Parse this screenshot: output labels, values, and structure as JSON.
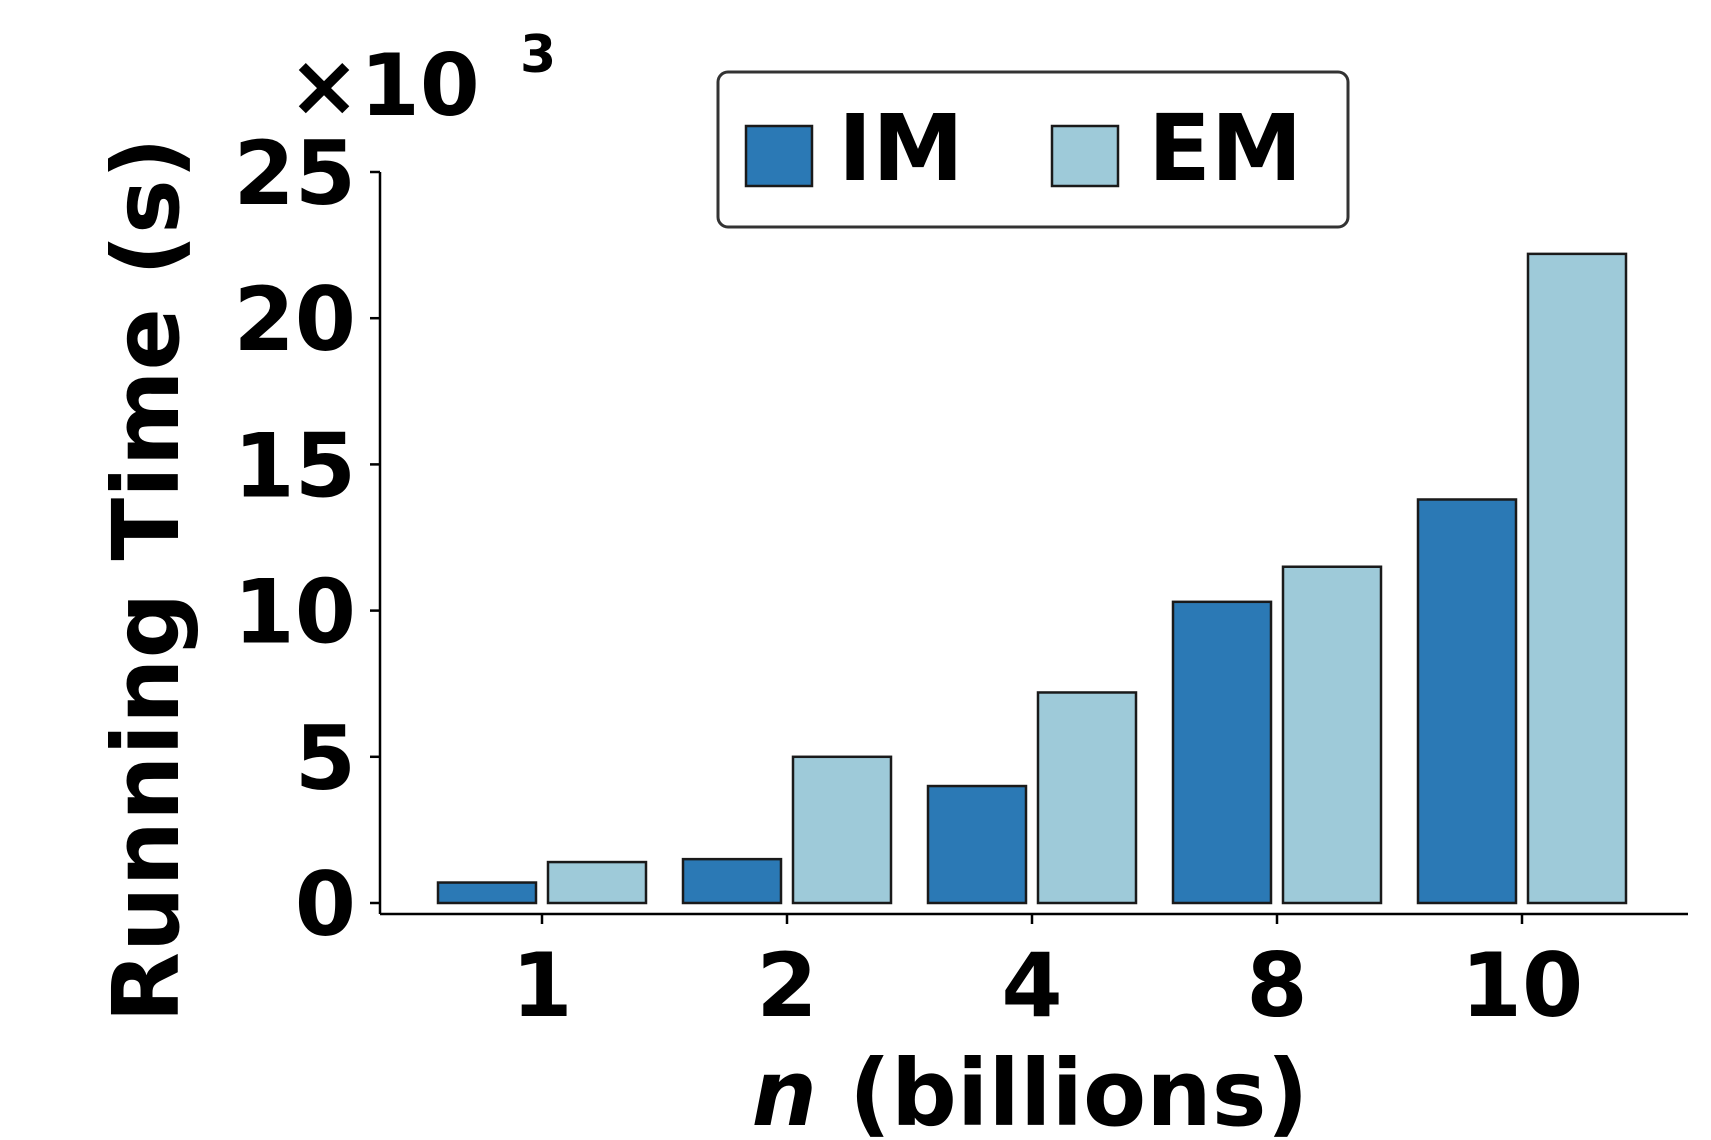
{
  "chart_data": {
    "type": "bar",
    "categories": [
      "1",
      "2",
      "4",
      "8",
      "10"
    ],
    "series": [
      {
        "name": "IM",
        "color": "#2b79b5",
        "values": [
          0.7,
          1.5,
          4.0,
          10.3,
          13.8
        ]
      },
      {
        "name": "EM",
        "color": "#9ecad9",
        "values": [
          1.4,
          5.0,
          7.2,
          11.5,
          22.2
        ]
      }
    ],
    "title": "",
    "xlabel_italic": "n",
    "xlabel_rest": " (billions)",
    "ylabel": "Running Time (s)",
    "y_offset_base": "×10",
    "y_offset_exp": "3",
    "ylim": [
      0,
      25
    ],
    "yticks": [
      0,
      5,
      10,
      15,
      20,
      25
    ],
    "grid": false,
    "legend_position": "top-center",
    "bar_edge_color": "#1a1a1a"
  }
}
